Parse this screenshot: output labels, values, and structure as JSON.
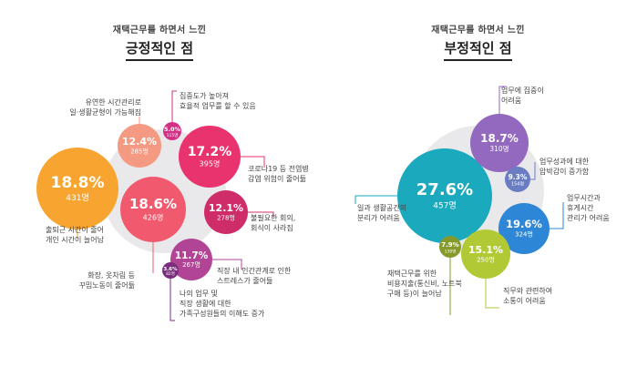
{
  "chart_data": [
    {
      "type": "bubble",
      "title_top": "재택근무를 하면서 느낀",
      "title": "긍정적인 점",
      "items": [
        {
          "label": [
            "출퇴근 시간이 줄어",
            "개인 시간이 늘어남"
          ],
          "pct": "18.8%",
          "count": "431명",
          "value": 18.8,
          "color": "#f7a530"
        },
        {
          "label": [
            "화장, 옷차림 등",
            "꾸밈노동이 줄어듦"
          ],
          "pct": "18.6%",
          "count": "426명",
          "value": 18.6,
          "color": "#f15a6e"
        },
        {
          "label": [
            "코로나19 등 전염병",
            "감염 위험이 줄어듦"
          ],
          "pct": "17.2%",
          "count": "395명",
          "value": 17.2,
          "color": "#e8336e"
        },
        {
          "label": [
            "유연한 시간관리로",
            "일·생활균형이 가능해짐"
          ],
          "pct": "12.4%",
          "count": "285명",
          "value": 12.4,
          "color": "#f59a82"
        },
        {
          "label": [
            "불필요한 회의,",
            "회식이 사라짐"
          ],
          "pct": "12.1%",
          "count": "278명",
          "value": 12.1,
          "color": "#cf2c6a"
        },
        {
          "label": [
            "직장 내 인간관계로 인한",
            "스트레스가 줄어듦"
          ],
          "pct": "11.7%",
          "count": "267명",
          "value": 11.7,
          "color": "#b14494"
        },
        {
          "label": [
            "집중도가 높아져",
            "효율적 업무를 할 수 있음"
          ],
          "pct": "5.0%",
          "count": "115명",
          "value": 5.0,
          "color": "#d22f86"
        },
        {
          "label": [
            "나의 업무 및",
            "직장 생활에 대한",
            "가족구성원들의 이해도 증가"
          ],
          "pct": "3.6%",
          "count": "82명",
          "value": 3.6,
          "color": "#7a2d7c"
        }
      ]
    },
    {
      "type": "bubble",
      "title_top": "재택근무를 하면서 느낀",
      "title": "부정적인 점",
      "items": [
        {
          "label": [
            "일과 생활공간의",
            "분리가 어려움"
          ],
          "pct": "27.6%",
          "count": "457명",
          "value": 27.6,
          "color": "#1aa9bd"
        },
        {
          "label": [
            "업무시간과",
            "휴게시간",
            "관리가 어려움"
          ],
          "pct": "19.6%",
          "count": "324명",
          "value": 19.6,
          "color": "#2e86d6"
        },
        {
          "label": [
            "업무에 집중이",
            "어려움"
          ],
          "pct": "18.7%",
          "count": "310명",
          "value": 18.7,
          "color": "#9368bf"
        },
        {
          "label": [
            "직무와 관련하여",
            "소통이 어려움"
          ],
          "pct": "15.1%",
          "count": "250명",
          "value": 15.1,
          "color": "#b2c936"
        },
        {
          "label": [
            "업무성과에 대한",
            "압박감이 증가함"
          ],
          "pct": "9.3%",
          "count": "154명",
          "value": 9.3,
          "color": "#6a7dc3"
        },
        {
          "label": [
            "재택근무를 위한",
            "비용지출(통신비, 노트북",
            "구매 등)이 늘어남"
          ],
          "pct": "7.9%",
          "count": "130명",
          "value": 7.9,
          "color": "#869a2c"
        }
      ]
    }
  ]
}
